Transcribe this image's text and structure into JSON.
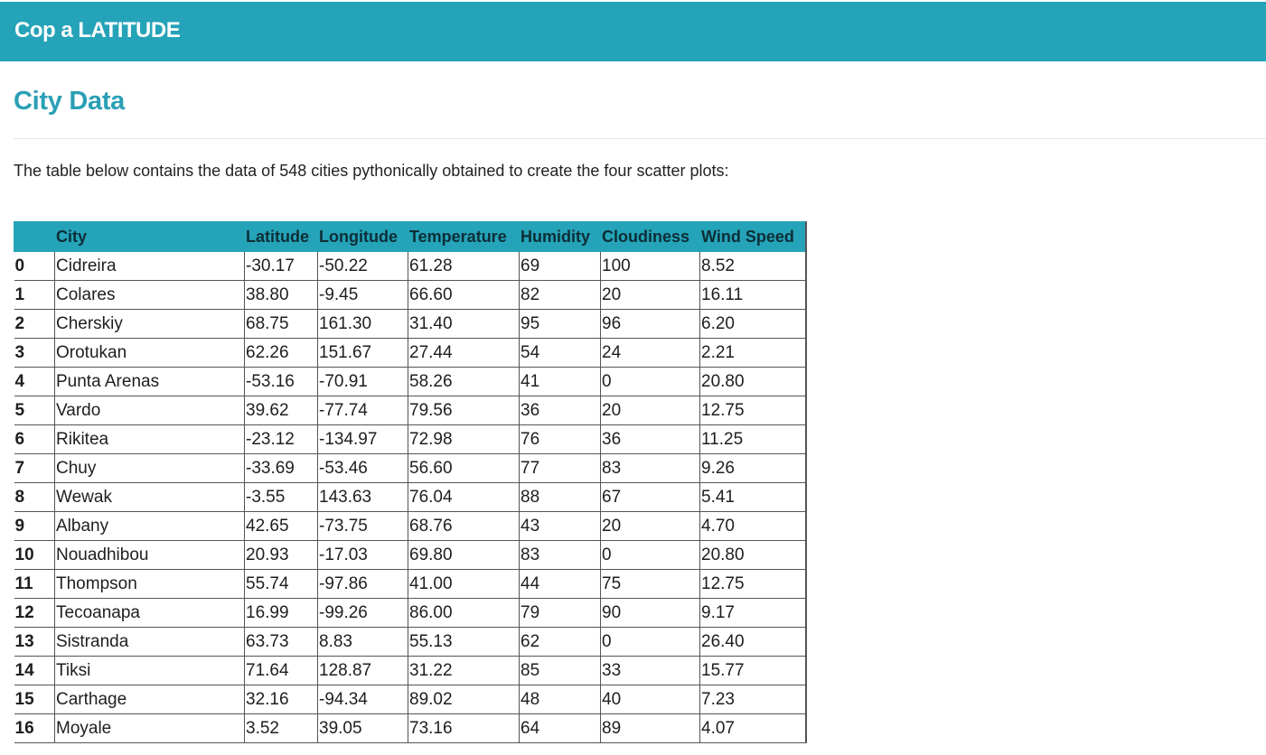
{
  "navbar": {
    "brand": "Cop a LATITUDE"
  },
  "page": {
    "title": "City Data",
    "intro": "The table below contains the data of 548 cities pythonically obtained to create the four scatter plots:"
  },
  "table": {
    "columns": [
      "",
      "City",
      "Latitude",
      "Longitude",
      "Temperature",
      "Humidity",
      "Cloudiness",
      "Wind Speed"
    ],
    "rows": [
      [
        "0",
        "Cidreira",
        "-30.17",
        "-50.22",
        "61.28",
        "69",
        "100",
        "8.52"
      ],
      [
        "1",
        "Colares",
        "38.80",
        "-9.45",
        "66.60",
        "82",
        "20",
        "16.11"
      ],
      [
        "2",
        "Cherskiy",
        "68.75",
        "161.30",
        "31.40",
        "95",
        "96",
        "6.20"
      ],
      [
        "3",
        "Orotukan",
        "62.26",
        "151.67",
        "27.44",
        "54",
        "24",
        "2.21"
      ],
      [
        "4",
        "Punta Arenas",
        "-53.16",
        "-70.91",
        "58.26",
        "41",
        "0",
        "20.80"
      ],
      [
        "5",
        "Vardo",
        "39.62",
        "-77.74",
        "79.56",
        "36",
        "20",
        "12.75"
      ],
      [
        "6",
        "Rikitea",
        "-23.12",
        "-134.97",
        "72.98",
        "76",
        "36",
        "11.25"
      ],
      [
        "7",
        "Chuy",
        "-33.69",
        "-53.46",
        "56.60",
        "77",
        "83",
        "9.26"
      ],
      [
        "8",
        "Wewak",
        "-3.55",
        "143.63",
        "76.04",
        "88",
        "67",
        "5.41"
      ],
      [
        "9",
        "Albany",
        "42.65",
        "-73.75",
        "68.76",
        "43",
        "20",
        "4.70"
      ],
      [
        "10",
        "Nouadhibou",
        "20.93",
        "-17.03",
        "69.80",
        "83",
        "0",
        "20.80"
      ],
      [
        "11",
        "Thompson",
        "55.74",
        "-97.86",
        "41.00",
        "44",
        "75",
        "12.75"
      ],
      [
        "12",
        "Tecoanapa",
        "16.99",
        "-99.26",
        "86.00",
        "79",
        "90",
        "9.17"
      ],
      [
        "13",
        "Sistranda",
        "63.73",
        "8.83",
        "55.13",
        "62",
        "0",
        "26.40"
      ],
      [
        "14",
        "Tiksi",
        "71.64",
        "128.87",
        "31.22",
        "85",
        "33",
        "15.77"
      ],
      [
        "15",
        "Carthage",
        "32.16",
        "-94.34",
        "89.02",
        "48",
        "40",
        "7.23"
      ],
      [
        "16",
        "Moyale",
        "3.52",
        "39.05",
        "73.16",
        "64",
        "89",
        "4.07"
      ]
    ]
  }
}
